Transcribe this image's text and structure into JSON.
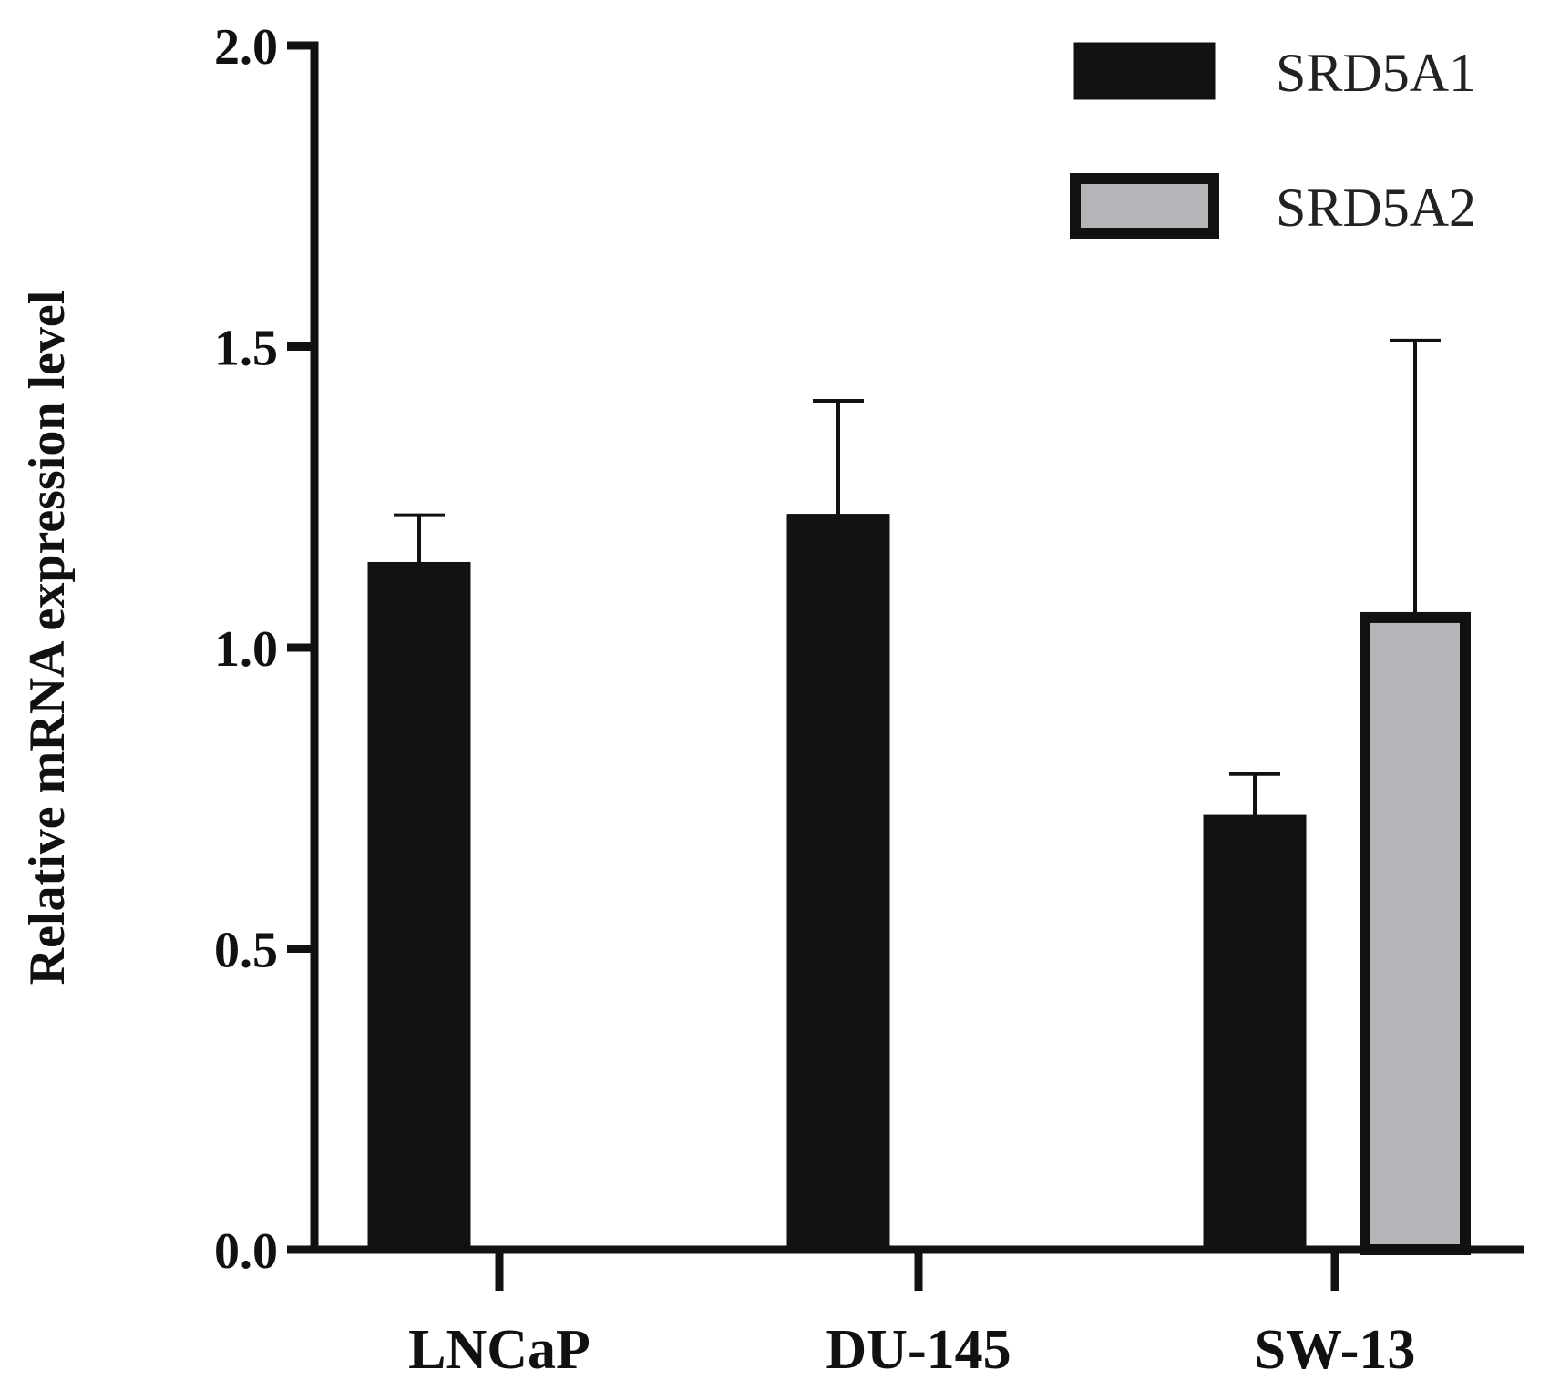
{
  "chart_data": {
    "type": "bar",
    "title": "",
    "xlabel": "",
    "ylabel": "Relative mRNA expression level",
    "categories": [
      "LNCaP",
      "DU-145",
      "SW-13"
    ],
    "series": [
      {
        "name": "SRD5A1",
        "color": "#141210",
        "values": [
          1.14,
          1.22,
          0.72
        ],
        "errors": [
          0.08,
          0.19,
          0.07
        ]
      },
      {
        "name": "SRD5A2",
        "color": "#b4b5b8",
        "values": [
          0,
          0,
          1.05
        ],
        "errors": [
          0,
          0,
          0.46
        ]
      }
    ],
    "ylim": [
      0,
      2.0
    ],
    "yticks": [
      0.0,
      0.5,
      1.0,
      1.5,
      2.0
    ],
    "ytick_labels": [
      "0.0",
      "0.5",
      "1.0",
      "1.5",
      "2.0"
    ],
    "legend_position": "top-right",
    "grid": false
  }
}
